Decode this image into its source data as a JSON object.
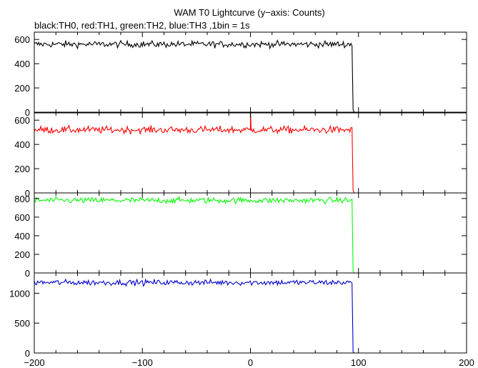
{
  "chart_data": {
    "type": "line",
    "title": "WAM T0 Lightcurve (y−axis: Counts)",
    "subtitle": "black:TH0, red:TH1, green:TH2, blue:TH3 ,1bin = 1s",
    "xlim": [
      -200,
      200
    ],
    "x_ticks": [
      -200,
      -100,
      0,
      100,
      200
    ],
    "x_tick_labels": [
      "−200",
      "−100",
      "0",
      "100",
      "200"
    ],
    "drop_x": 94,
    "bin_seconds": 1,
    "panels": [
      {
        "series": "TH0",
        "color": "#000000",
        "ylim": [
          0,
          660
        ],
        "y_ticks": [
          0,
          200,
          400,
          600
        ],
        "y_tick_labels": [
          "0",
          "200",
          "400",
          "600"
        ],
        "baseline": 560,
        "noise": 25,
        "after_level": 0,
        "spike": null
      },
      {
        "series": "TH1",
        "color": "#ff0000",
        "ylim": [
          0,
          660
        ],
        "y_ticks": [
          0,
          200,
          400,
          600
        ],
        "y_tick_labels": [
          "0",
          "200",
          "400",
          "600"
        ],
        "baseline": 520,
        "noise": 28,
        "after_level": 0,
        "spike": {
          "x": 0,
          "y": 680
        }
      },
      {
        "series": "TH2",
        "color": "#00ff00",
        "ylim": [
          0,
          860
        ],
        "y_ticks": [
          0,
          200,
          400,
          600,
          800
        ],
        "y_tick_labels": [
          "0",
          "200",
          "400",
          "600",
          "800"
        ],
        "baseline": 780,
        "noise": 30,
        "after_level": 0,
        "spike": null
      },
      {
        "series": "TH3",
        "color": "#0000cc",
        "ylim": [
          0,
          1340
        ],
        "y_ticks": [
          0,
          500,
          1000
        ],
        "y_tick_labels": [
          "0",
          "500",
          "1000"
        ],
        "baseline": 1180,
        "noise": 45,
        "after_level": 0,
        "spike": null
      }
    ]
  }
}
